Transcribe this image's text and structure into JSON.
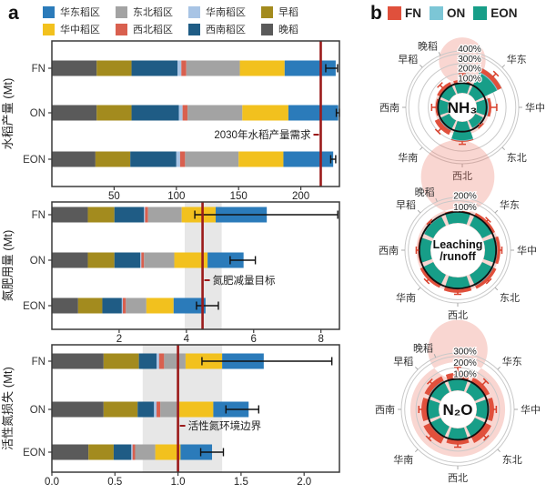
{
  "panel_a": {
    "label": "a",
    "legend": [
      {
        "name": "华东稻区",
        "color": "#2b7bba"
      },
      {
        "name": "华中稻区",
        "color": "#f2c11e"
      },
      {
        "name": "东北稻区",
        "color": "#a3a3a3"
      },
      {
        "name": "西北稻区",
        "color": "#d9604f"
      },
      {
        "name": "华南稻区",
        "color": "#a8c4e5"
      },
      {
        "name": "西南稻区",
        "color": "#1f5c85"
      },
      {
        "name": "早稻",
        "color": "#a38b1e"
      },
      {
        "name": "晚稻",
        "color": "#5a5a5a"
      }
    ]
  },
  "panel_b": {
    "label": "b",
    "legend": [
      {
        "name": "FN",
        "color": "#e0503c"
      },
      {
        "name": "ON",
        "color": "#7cc6d6"
      },
      {
        "name": "EON",
        "color": "#179e88"
      }
    ]
  },
  "colors": {
    "refline": "#9b1a1a",
    "band": "#e7e7e7",
    "pink_band": "#e86a5a",
    "frame": "#3a3a3a",
    "error_bar": "#111111",
    "whisker": "#d9402c",
    "grid_ring": "#c9c9c9",
    "black_circle": "#111111"
  },
  "chart_data": [
    {
      "type": "stacked-bar-horizontal",
      "ylabel": "水稻产量 (Mt)",
      "rows": [
        "FN",
        "ON",
        "EON"
      ],
      "categories": [
        "晚稻",
        "早稻",
        "西南稻区",
        "华南稻区",
        "西北稻区",
        "东北稻区",
        "华中稻区",
        "华东稻区"
      ],
      "series": [
        {
          "name": "FN",
          "values": [
            36,
            28,
            37,
            3,
            4,
            43,
            36,
            41
          ],
          "error": [
            220,
            229.5
          ]
        },
        {
          "name": "ON",
          "values": [
            36,
            28,
            38,
            3,
            4,
            44,
            37,
            40
          ],
          "error": [
            228.5,
            231
          ]
        },
        {
          "name": "EON",
          "values": [
            35,
            28,
            37,
            3,
            4,
            43,
            36,
            40
          ],
          "error": [
            224,
            228
          ]
        }
      ],
      "xticks": [
        "50",
        "100",
        "150",
        "200"
      ],
      "xlim": [
        0,
        231
      ],
      "refline": {
        "value": 216,
        "label": "2030年水稻产量需求",
        "label_side": "left"
      },
      "band": null
    },
    {
      "type": "stacked-bar-horizontal",
      "ylabel": "氮肥用量 (Mt)",
      "rows": [
        "FN",
        "ON",
        "EON"
      ],
      "categories": [
        "晚稻",
        "早稻",
        "西南稻区",
        "华南稻区",
        "西北稻区",
        "东北稻区",
        "华中稻区",
        "华东稻区"
      ],
      "series": [
        {
          "name": "FN",
          "values": [
            1.07,
            0.79,
            0.88,
            0.03,
            0.09,
            1.0,
            1.01,
            1.52
          ],
          "error": [
            4.25,
            8.5
          ]
        },
        {
          "name": "ON",
          "values": [
            1.07,
            0.79,
            0.77,
            0.03,
            0.08,
            0.9,
            0.99,
            1.07
          ],
          "error": [
            5.3,
            6.05
          ]
        },
        {
          "name": "EON",
          "values": [
            0.78,
            0.72,
            0.58,
            0.03,
            0.09,
            0.61,
            0.81,
            0.95
          ],
          "error": [
            4.3,
            4.95
          ]
        }
      ],
      "xticks": [
        "2",
        "4",
        "6",
        "8"
      ],
      "xlim": [
        0,
        8.55
      ],
      "refline": {
        "value": 4.48,
        "label": "氮肥减量目标",
        "label_side": "right"
      },
      "band": [
        3.95,
        5.05
      ]
    },
    {
      "type": "stacked-bar-horizontal",
      "ylabel": "活性氮损失 (Mt)",
      "rows": [
        "FN",
        "ON",
        "EON"
      ],
      "categories": [
        "晚稻",
        "早稻",
        "西南稻区",
        "华南稻区",
        "西北稻区",
        "东北稻区",
        "华中稻区",
        "华东稻区"
      ],
      "series": [
        {
          "name": "FN",
          "values": [
            0.41,
            0.28,
            0.14,
            0.02,
            0.04,
            0.17,
            0.29,
            0.33
          ],
          "error": [
            1.19,
            2.22
          ]
        },
        {
          "name": "ON",
          "values": [
            0.41,
            0.27,
            0.13,
            0.02,
            0.03,
            0.15,
            0.27,
            0.28
          ],
          "error": [
            1.38,
            1.64
          ]
        },
        {
          "name": "EON",
          "values": [
            0.29,
            0.2,
            0.14,
            0.01,
            0.02,
            0.16,
            0.2,
            0.25
          ],
          "error": [
            1.18,
            1.36
          ]
        }
      ],
      "xticks": [
        "0.0",
        "0.5",
        "1.0",
        "1.5",
        "2.0"
      ],
      "xlim": [
        0,
        2.28
      ],
      "refline": {
        "value": 1.0,
        "label": "活性氮环境边界",
        "label_side": "right"
      },
      "band": [
        0.72,
        1.35
      ]
    },
    {
      "type": "polar-bar",
      "title_lines": [
        "NH₃"
      ],
      "rings": [
        100,
        200,
        300,
        400
      ],
      "ring_suffix": "%",
      "axis_max": 430,
      "band": [
        90,
        135
      ],
      "sectors": [
        "晚稻",
        "华东",
        "华中",
        "东北",
        "西北",
        "华南",
        "西南",
        "早稻"
      ],
      "series": [
        {
          "name": "FN",
          "values": [
            135,
            300,
            150,
            95,
            205,
            165,
            125,
            140
          ]
        },
        {
          "name": "ON",
          "values": [
            108,
            255,
            122,
            90,
            195,
            115,
            102,
            108
          ]
        },
        {
          "name": "EON",
          "values": [
            100,
            245,
            112,
            85,
            188,
            108,
            96,
            103
          ]
        }
      ],
      "whiskers": [
        195,
        340,
        205,
        120,
        230,
        205,
        165,
        175
      ]
    },
    {
      "type": "polar-bar",
      "title_lines": [
        "Leaching",
        "/runoff"
      ],
      "rings": [
        100,
        200
      ],
      "ring_suffix": "%",
      "axis_max": 230,
      "band": [
        85,
        128
      ],
      "sectors": [
        "晚稻",
        "华东",
        "华中",
        "东北",
        "西北",
        "华南",
        "西南",
        "早稻"
      ],
      "series": [
        {
          "name": "FN",
          "values": [
            112,
            128,
            138,
            142,
            138,
            132,
            112,
            102
          ]
        },
        {
          "name": "ON",
          "values": [
            97,
            104,
            110,
            112,
            105,
            106,
            98,
            92
          ]
        },
        {
          "name": "EON",
          "values": [
            94,
            100,
            105,
            108,
            100,
            102,
            94,
            88
          ]
        }
      ],
      "whiskers": [
        130,
        142,
        152,
        150,
        152,
        150,
        128,
        115
      ]
    },
    {
      "type": "polar-bar",
      "title_lines": [
        "N₂O"
      ],
      "rings": [
        100,
        200,
        300
      ],
      "ring_suffix": "%",
      "axis_max": 330,
      "band": [
        95,
        250
      ],
      "sectors": [
        "晚稻",
        "华东",
        "华中",
        "东北",
        "西北",
        "华南",
        "西南",
        "早稻"
      ],
      "series": [
        {
          "name": "FN",
          "values": [
            155,
            145,
            152,
            162,
            142,
            168,
            152,
            158
          ]
        },
        {
          "name": "ON",
          "values": [
            105,
            100,
            112,
            105,
            98,
            108,
            102,
            112
          ]
        },
        {
          "name": "EON",
          "values": [
            100,
            95,
            108,
            100,
            94,
            104,
            98,
            108
          ]
        }
      ],
      "whiskers": [
        205,
        185,
        172,
        188,
        165,
        195,
        175,
        180
      ]
    }
  ]
}
